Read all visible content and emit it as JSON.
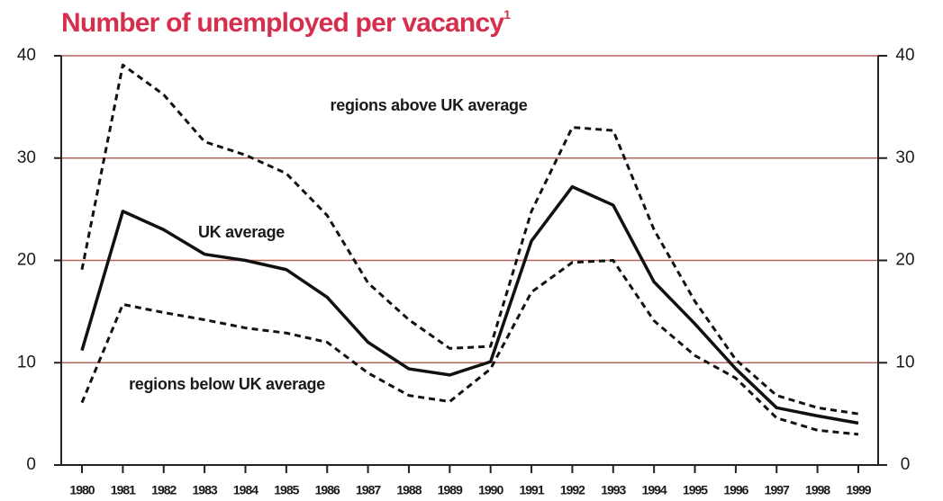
{
  "chart_data": {
    "type": "line",
    "title": "Number of unemployed per vacancy",
    "title_note": "1",
    "title_color": "#d62f4e",
    "categories": [
      "1980",
      "1981",
      "1982",
      "1983",
      "1984",
      "1985",
      "1986",
      "1987",
      "1988",
      "1989",
      "1990",
      "1991",
      "1992",
      "1993",
      "1994",
      "1995",
      "1996",
      "1997",
      "1998",
      "1999"
    ],
    "series": [
      {
        "name": "UK average",
        "color": "#111111",
        "dash": "solid",
        "values": [
          11.2,
          24.8,
          23.0,
          20.6,
          20.0,
          19.1,
          16.4,
          12.0,
          9.4,
          8.8,
          10.1,
          21.9,
          27.2,
          25.4,
          17.9,
          13.8,
          9.4,
          5.6,
          4.8,
          4.1
        ]
      },
      {
        "name": "regions above UK average",
        "color": "#111111",
        "dash": "dashed",
        "values": [
          19.1,
          39.1,
          36.2,
          31.6,
          30.3,
          28.5,
          24.4,
          17.8,
          14.2,
          11.4,
          11.6,
          24.8,
          33.0,
          32.7,
          23.0,
          16.0,
          10.3,
          6.8,
          5.6,
          5.0
        ]
      },
      {
        "name": "regions below UK average",
        "color": "#111111",
        "dash": "dashed",
        "values": [
          6.1,
          15.7,
          14.9,
          14.2,
          13.4,
          12.9,
          12.0,
          9.0,
          6.8,
          6.2,
          9.4,
          16.9,
          19.8,
          20.0,
          14.1,
          10.7,
          8.5,
          4.6,
          3.4,
          3.0
        ]
      }
    ],
    "ylim": [
      0,
      40
    ],
    "yticks": [
      0,
      10,
      20,
      30,
      40
    ],
    "y2lim": [
      0,
      40
    ],
    "y2ticks": [
      0,
      10,
      20,
      30,
      40
    ],
    "grid": true,
    "grid_color": "#b5645a"
  }
}
